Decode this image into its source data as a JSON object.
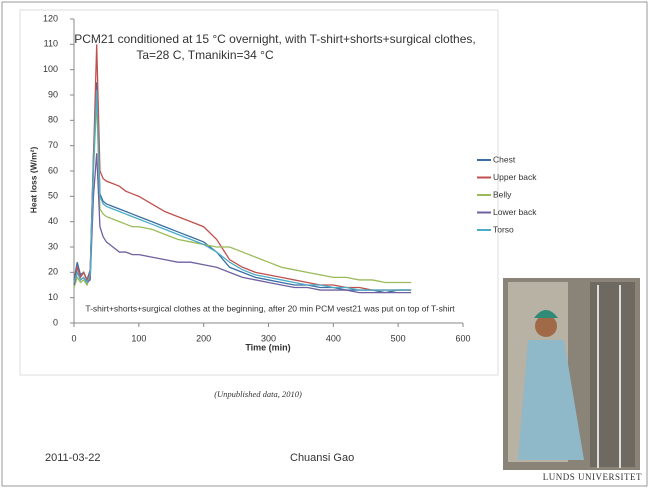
{
  "chart_data": {
    "type": "line",
    "title": [
      "PCM21 conditioned at 15 °C overnight, with T-shirt+shorts+surgical clothes,",
      "Ta=28 C, Tmanikin=34 °C"
    ],
    "annotation": "T-shirt+shorts+surgical clothes at the beginning, after 20 min PCM vest21 was put on top of T-shirt",
    "x_label": "Time (min)",
    "y_label": "Heat loss (W/m²)",
    "xlim": [
      0,
      600
    ],
    "xticks": [
      0,
      100,
      200,
      300,
      400,
      500,
      600
    ],
    "ylim": [
      0,
      120
    ],
    "yticks": [
      0,
      10,
      20,
      30,
      40,
      50,
      60,
      70,
      80,
      90,
      100,
      110,
      120
    ],
    "grid": false,
    "legend": "right",
    "x": [
      0,
      5,
      10,
      15,
      20,
      25,
      30,
      35,
      40,
      45,
      50,
      60,
      70,
      80,
      90,
      100,
      120,
      140,
      160,
      180,
      200,
      220,
      240,
      260,
      280,
      300,
      320,
      340,
      360,
      380,
      400,
      420,
      440,
      460,
      480,
      500,
      520
    ],
    "series": [
      {
        "name": "Chest",
        "color": "#3a6ea5",
        "values": [
          17,
          24,
          19,
          20,
          17,
          21,
          66,
          95,
          51,
          48,
          47,
          46,
          45,
          44,
          43,
          42,
          40,
          38,
          36,
          34,
          32,
          28,
          22,
          20,
          18,
          17,
          16,
          15,
          15,
          14,
          14,
          13,
          13,
          13,
          12,
          13,
          13
        ]
      },
      {
        "name": "Upper back",
        "color": "#c0504d",
        "values": [
          16,
          22,
          18,
          20,
          17,
          20,
          65,
          110,
          60,
          57,
          56,
          55,
          54,
          52,
          51,
          50,
          47,
          44,
          42,
          40,
          38,
          33,
          25,
          22,
          20,
          19,
          18,
          17,
          16,
          15,
          15,
          14,
          14,
          13,
          13,
          13,
          13
        ]
      },
      {
        "name": "Belly",
        "color": "#9bbb59",
        "values": [
          14,
          18,
          16,
          17,
          15,
          18,
          60,
          88,
          45,
          43,
          42,
          41,
          40,
          39,
          38,
          38,
          37,
          35,
          33,
          32,
          31,
          30,
          30,
          28,
          26,
          24,
          22,
          21,
          20,
          19,
          18,
          18,
          17,
          17,
          16,
          16,
          16
        ]
      },
      {
        "name": "Lower back",
        "color": "#7060a0",
        "values": [
          15,
          20,
          17,
          18,
          16,
          17,
          50,
          67,
          38,
          34,
          32,
          30,
          28,
          28,
          27,
          27,
          26,
          25,
          24,
          24,
          23,
          22,
          20,
          18,
          17,
          16,
          15,
          14,
          14,
          13,
          13,
          13,
          12,
          12,
          12,
          12,
          12
        ]
      },
      {
        "name": "Torso",
        "color": "#4bacc6",
        "values": [
          16,
          20,
          17,
          18,
          16,
          19,
          62,
          92,
          50,
          47,
          46,
          45,
          44,
          43,
          42,
          41,
          39,
          37,
          35,
          33,
          31,
          28,
          24,
          21,
          19,
          18,
          17,
          16,
          15,
          15,
          14,
          14,
          13,
          13,
          13,
          13,
          13
        ]
      }
    ]
  },
  "source": "(Unpublished data, 2010)",
  "footer": {
    "date": "2011-03-22",
    "author": "Chuansi Gao",
    "logo": "LUNDS UNIVERSITET"
  }
}
